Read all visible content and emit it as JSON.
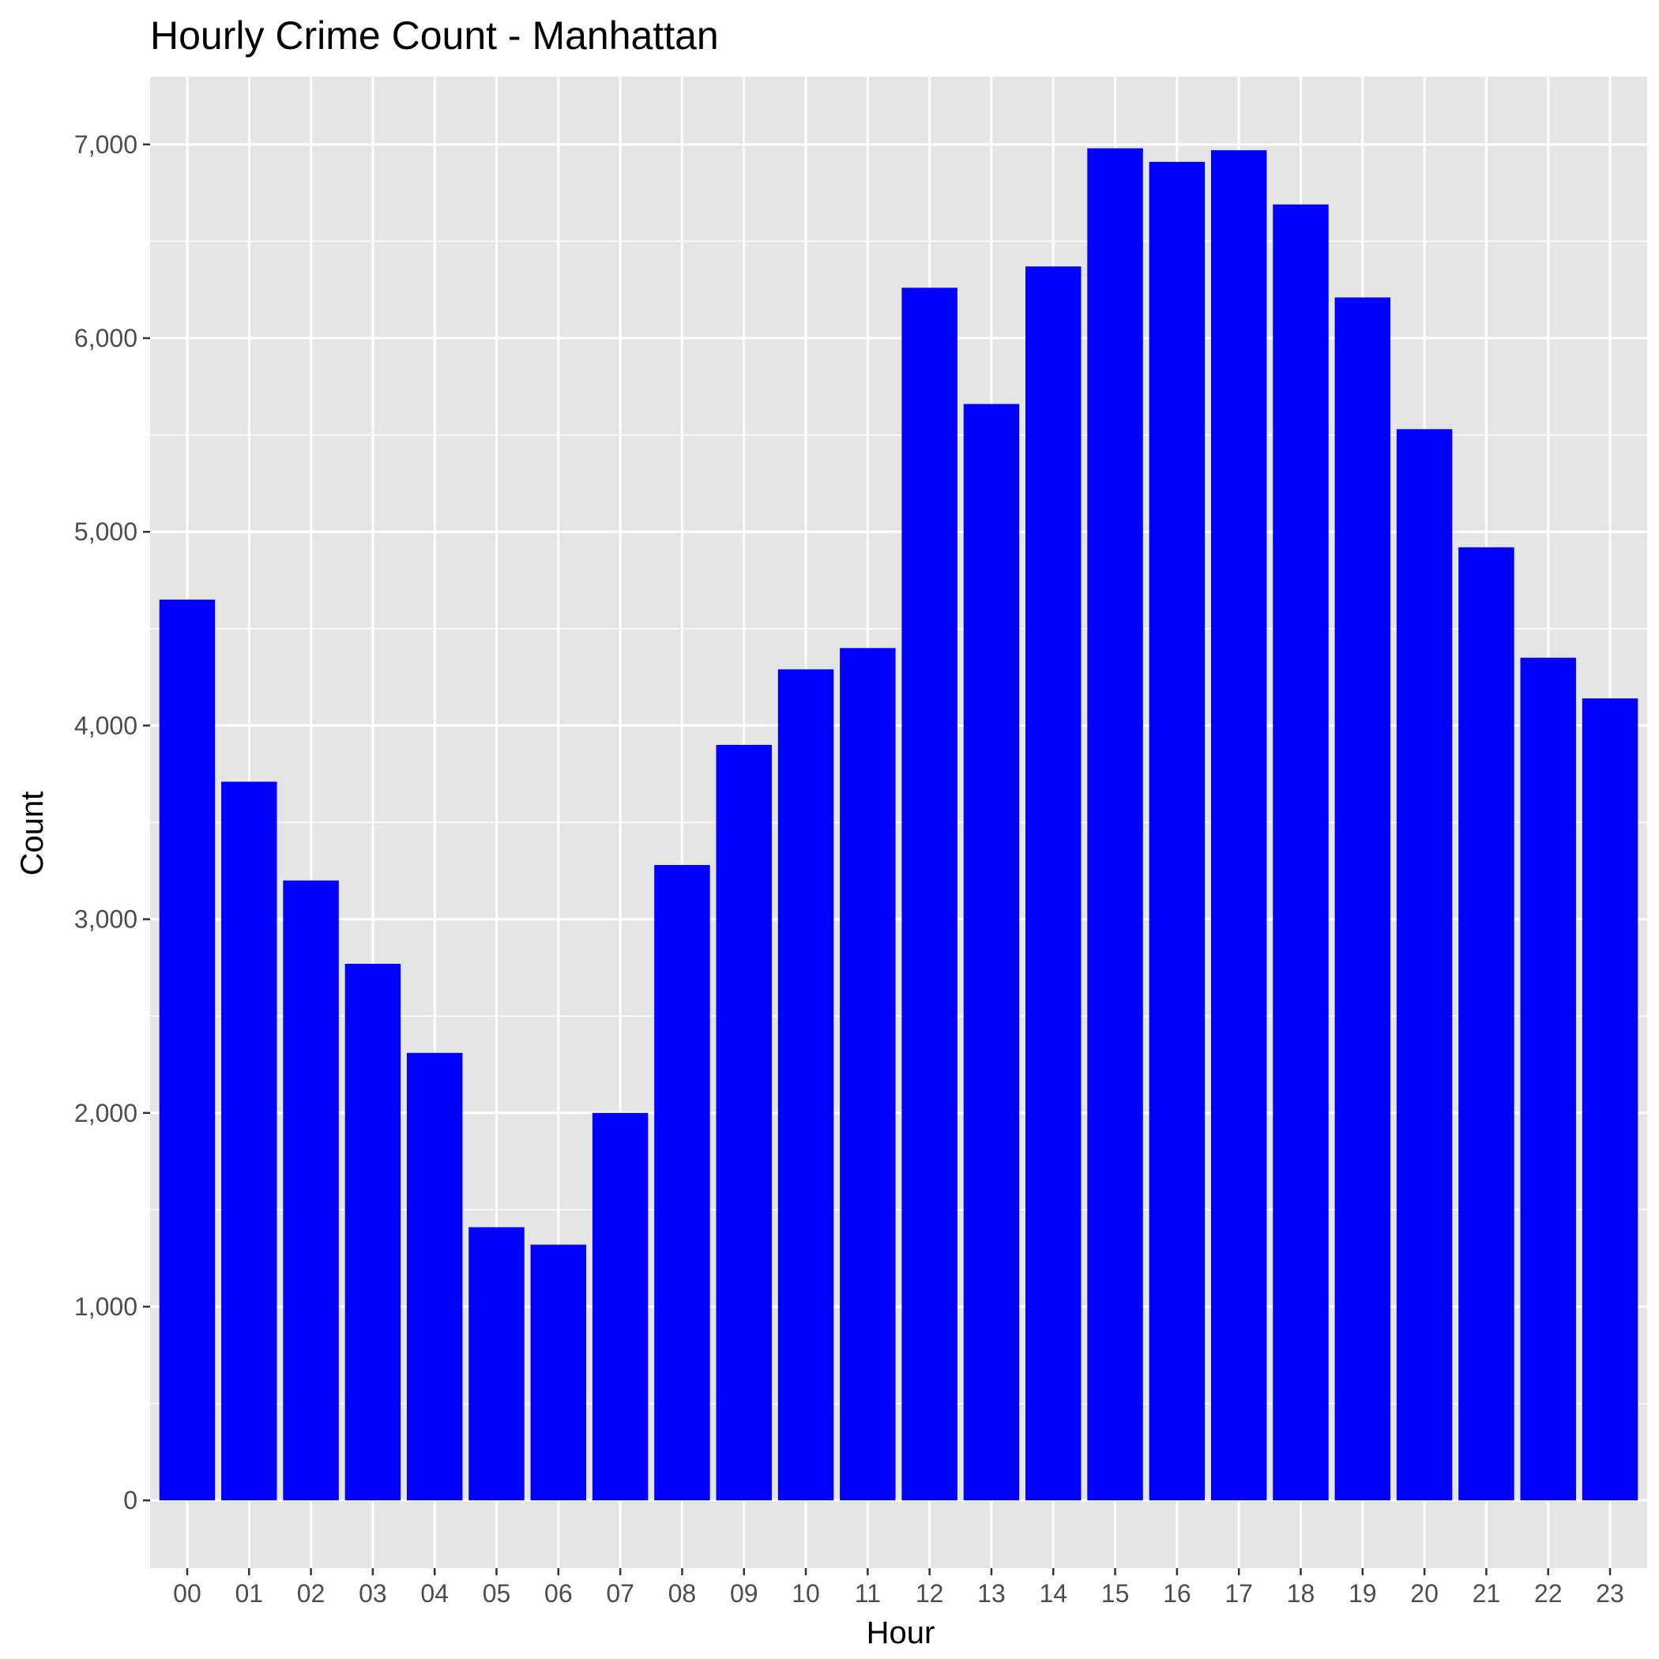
{
  "chart_data": {
    "type": "bar",
    "title": "Hourly Crime Count - Manhattan",
    "xlabel": "Hour",
    "ylabel": "Count",
    "categories": [
      "00",
      "01",
      "02",
      "03",
      "04",
      "05",
      "06",
      "07",
      "08",
      "09",
      "10",
      "11",
      "12",
      "13",
      "14",
      "15",
      "16",
      "17",
      "18",
      "19",
      "20",
      "21",
      "22",
      "23"
    ],
    "values": [
      4650,
      3710,
      3200,
      2770,
      2310,
      1410,
      1320,
      2000,
      3280,
      3900,
      4290,
      4400,
      6260,
      5660,
      6370,
      6980,
      6910,
      6970,
      6690,
      6210,
      5530,
      4920,
      4350,
      4140
    ],
    "ylim": [
      -350,
      7350
    ],
    "yticks": [
      0,
      1000,
      2000,
      3000,
      4000,
      5000,
      6000,
      7000
    ],
    "ytick_labels": [
      "0",
      "1,000",
      "2,000",
      "3,000",
      "4,000",
      "5,000",
      "6,000",
      "7,000"
    ],
    "bar_color": "#0000ff",
    "panel_background": "#e5e5e5",
    "grid_color": "#ffffff",
    "grid": true,
    "legend": "none"
  }
}
